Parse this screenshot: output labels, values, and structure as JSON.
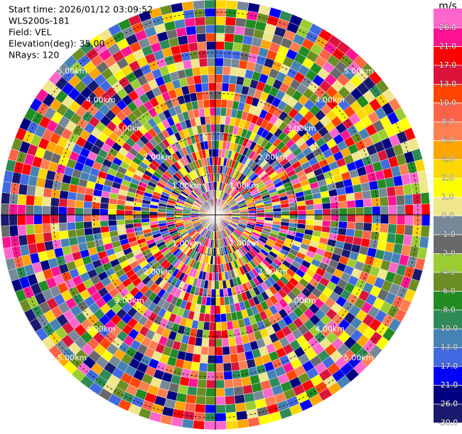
{
  "chart_data": {
    "type": "ppi",
    "info": [
      "Start time: 2026/01/12 03:09:52",
      "WLS200s-181",
      "Field: VEL",
      "Elevation(deg): 35.00",
      "NRays: 120"
    ],
    "range_rings": [
      {
        "value": 1,
        "label": "1.00km"
      },
      {
        "value": 2,
        "label": "2.00km"
      },
      {
        "value": 3,
        "label": "3.00km"
      },
      {
        "value": 4,
        "label": "4.00km"
      },
      {
        "value": 5,
        "label": "5.00km"
      }
    ],
    "colorbar": {
      "title": "m/s",
      "ticks": [
        {
          "value": 26,
          "label": "26.0"
        },
        {
          "value": 21,
          "label": "21.0"
        },
        {
          "value": 17,
          "label": "17.0"
        },
        {
          "value": 13,
          "label": "13.0"
        },
        {
          "value": 10,
          "label": "10.0"
        },
        {
          "value": 8,
          "label": "8.0"
        },
        {
          "value": 6,
          "label": "6.0"
        },
        {
          "value": 4,
          "label": "4.0"
        },
        {
          "value": 2,
          "label": "2.0"
        },
        {
          "value": 1,
          "label": "1.0"
        },
        {
          "value": 0,
          "label": "0.0"
        },
        {
          "value": -1,
          "label": "-1.0"
        },
        {
          "value": -2,
          "label": "-2.0"
        },
        {
          "value": -4,
          "label": "-4.0"
        },
        {
          "value": -6,
          "label": "-6.0"
        },
        {
          "value": -8,
          "label": "-8.0"
        },
        {
          "value": -10,
          "label": "-10.0"
        },
        {
          "value": -13,
          "label": "-13.0"
        },
        {
          "value": -17,
          "label": "-17.0"
        },
        {
          "value": -21,
          "label": "-21.0"
        },
        {
          "value": -26,
          "label": "-26.0"
        },
        {
          "value": -30,
          "label": "-30.0"
        }
      ],
      "colors": [
        "#ff66cc",
        "#ff1493",
        "#ff0000",
        "#dc143c",
        "#ff4500",
        "#ff6347",
        "#ff7f50",
        "#ffa500",
        "#ffd700",
        "#ffff00",
        "#f0e68c",
        "#778899",
        "#696969",
        "#9acd32",
        "#6b8e23",
        "#228b22",
        "#2e8b57",
        "#4682b4",
        "#4169e1",
        "#0000ff",
        "#000080",
        "#191970"
      ]
    }
  }
}
